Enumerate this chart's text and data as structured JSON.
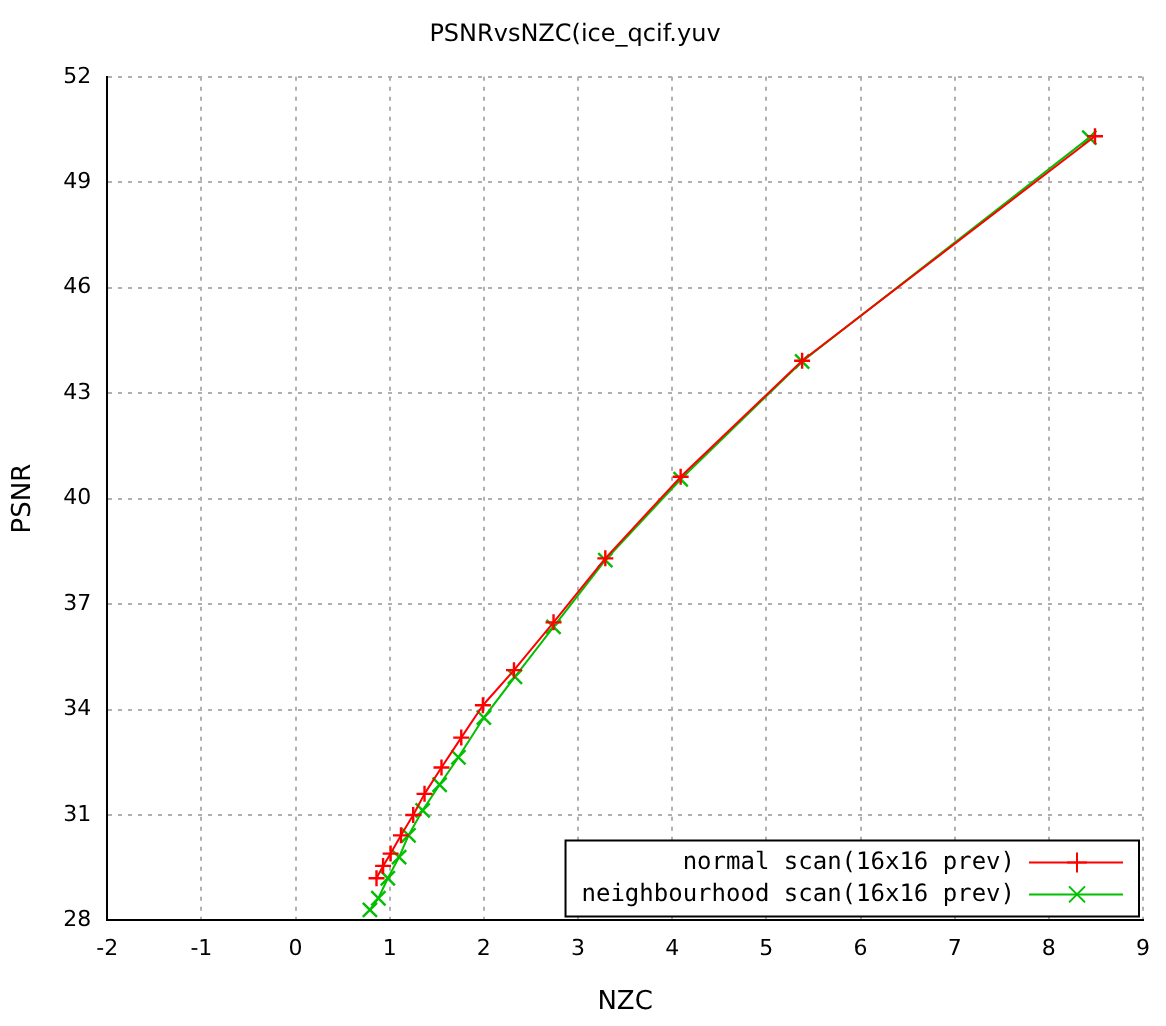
{
  "chart_data": {
    "type": "line",
    "title": "PSNRvsNZC(ice_qcif.yuv",
    "xlabel": "NZC",
    "ylabel": "PSNR",
    "xlim": [
      -2,
      9
    ],
    "xticks": [
      -2,
      -1,
      0,
      1,
      2,
      3,
      4,
      5,
      6,
      7,
      8,
      9
    ],
    "ylim": [
      28,
      52
    ],
    "yticks": [
      28,
      31,
      34,
      37,
      40,
      43,
      46,
      49,
      52
    ],
    "grid": true,
    "legend": "bottom right",
    "series": [
      {
        "name": "normal scan(16x16 prev)",
        "color": "#ff0000",
        "marker": "cross",
        "x": [
          0.86,
          0.93,
          1.01,
          1.12,
          1.25,
          1.37,
          1.55,
          1.76,
          1.99,
          2.32,
          2.74,
          3.29,
          4.09,
          5.38,
          8.49
        ],
        "values": [
          29.2,
          29.55,
          29.9,
          30.42,
          31.0,
          31.6,
          32.35,
          33.2,
          34.12,
          35.12,
          36.48,
          38.3,
          40.62,
          43.92,
          50.31
        ]
      },
      {
        "name": "neighbourhood scan(16x16 prev)",
        "color": "#00c000",
        "marker": "x",
        "x": [
          0.79,
          0.88,
          0.98,
          1.1,
          1.2,
          1.35,
          1.53,
          1.73,
          2.0,
          2.33,
          2.74,
          3.29,
          4.09,
          5.38,
          8.43
        ],
        "values": [
          28.3,
          28.63,
          29.2,
          29.8,
          30.42,
          31.13,
          31.86,
          32.64,
          33.77,
          34.93,
          36.35,
          38.25,
          40.55,
          43.9,
          50.27
        ]
      }
    ]
  }
}
